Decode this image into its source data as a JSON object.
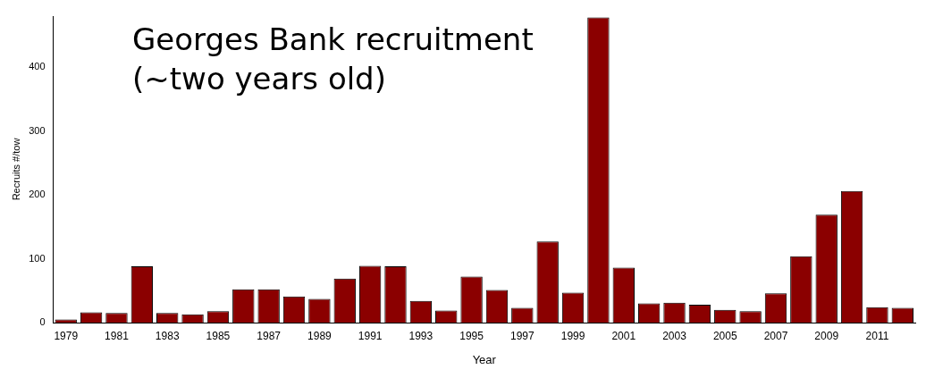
{
  "chart_data": {
    "type": "bar",
    "title": "Georges Bank recruitment (~two years old)",
    "xlabel": "Year",
    "ylabel": "Recruits #/tow",
    "categories": [
      "1979",
      null,
      "1981",
      null,
      "1983",
      null,
      "1985",
      null,
      "1987",
      null,
      "1989",
      null,
      "1991",
      null,
      "1993",
      null,
      "1995",
      null,
      "1997",
      null,
      "1999",
      null,
      "2001",
      null,
      "2003",
      null,
      "2005",
      null,
      "2007",
      null,
      "2009",
      null,
      "2011",
      null
    ],
    "values": [
      5,
      16,
      15,
      88,
      15,
      13,
      18,
      52,
      52,
      41,
      37,
      69,
      89,
      88,
      34,
      19,
      72,
      51,
      23,
      127,
      47,
      478,
      86,
      30,
      31,
      28,
      20,
      18,
      46,
      104,
      169,
      206,
      24,
      23
    ],
    "color": "#8b0000",
    "ylim": [
      0,
      480
    ],
    "yticks": [
      0,
      100,
      200,
      300,
      400
    ],
    "grid": false,
    "legend": false
  }
}
